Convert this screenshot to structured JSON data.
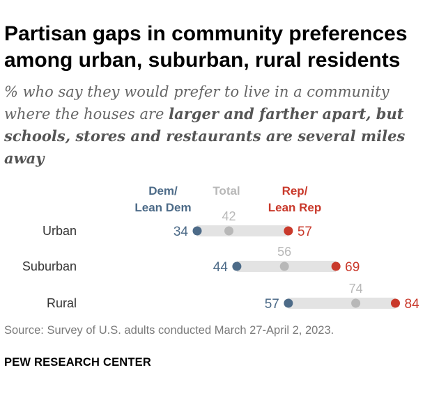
{
  "title": "Partisan gaps in community preferences among urban, suburban, rural residents",
  "subtitle_plain": "% who say they would prefer to live in a community where the houses are ",
  "subtitle_bold": "larger and farther apart, but schools, stores and restaurants are several miles away",
  "source": "Source: Survey of U.S. adults conducted March 27-April 2, 2023.",
  "brand": "PEW RESEARCH CENTER",
  "colors": {
    "dem": "#4d6b88",
    "total": "#b8b8b8",
    "rep": "#c9392b",
    "bar": "#e3e3e3",
    "label": "#333333"
  },
  "chart_data": {
    "type": "dot",
    "categories": [
      "Urban",
      "Suburban",
      "Rural"
    ],
    "series": [
      {
        "name": "Dem/ Lean Dem",
        "label_lines": [
          "Dem/",
          "Lean Dem"
        ],
        "values": [
          34,
          44,
          57
        ]
      },
      {
        "name": "Total",
        "label_lines": [
          "Total"
        ],
        "values": [
          42,
          56,
          74
        ]
      },
      {
        "name": "Rep/ Lean Rep",
        "label_lines": [
          "Rep/",
          "Lean Rep"
        ],
        "values": [
          57,
          69,
          84
        ]
      }
    ]
  }
}
